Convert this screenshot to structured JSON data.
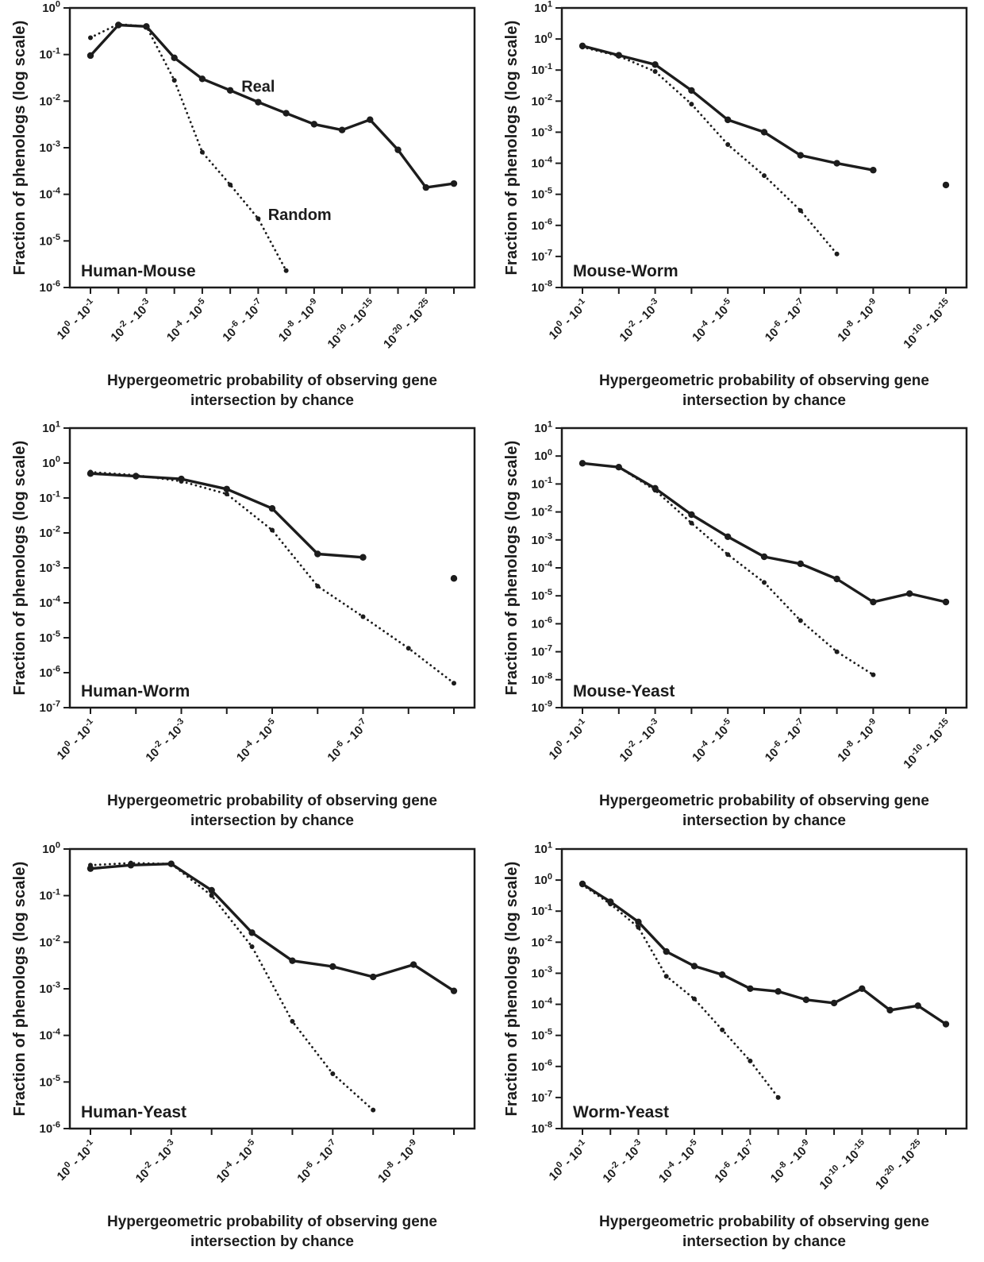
{
  "figure": {
    "background": "#ffffff",
    "ink": "#1c1c1c",
    "series_legend": [
      "Real",
      "Random"
    ]
  },
  "chart_data": [
    {
      "type": "line",
      "title": "Human-Mouse",
      "ylabel": "Fraction of phenologs (log scale)",
      "xlabel": "Hypergeometric probability of observing gene intersection by chance",
      "xlabel_lines": [
        "Hypergeometric probability of observing gene",
        "intersection by chance"
      ],
      "y_axis": {
        "top_exp": 0,
        "bottom_exp": -6,
        "scale": "log"
      },
      "x_tick_labels": [
        "10^0 - 10^-1",
        "",
        "10^-2 - 10^-3",
        "",
        "10^-4 - 10^-5",
        "",
        "10^-6 - 10^-7",
        "",
        "10^-8 - 10^-9",
        "",
        "10^-10 - 10^-15",
        "",
        "10^-20 - 10^-25",
        ""
      ],
      "series": [
        {
          "name": "Real",
          "style": "solid",
          "values": [
            0.095,
            0.43,
            0.4,
            0.085,
            0.03,
            0.017,
            0.0095,
            0.0055,
            0.0032,
            0.0024,
            0.004,
            0.0009,
            0.00014,
            0.00017
          ]
        },
        {
          "name": "Random",
          "style": "dotted",
          "values": [
            0.23,
            0.45,
            0.4,
            0.028,
            0.0008,
            0.00016,
            3e-05,
            2.3e-06,
            null,
            null,
            null,
            null,
            null,
            null
          ]
        }
      ],
      "annotations": [
        {
          "text": "Real",
          "x": 5.4,
          "y": 0.016
        },
        {
          "text": "Random",
          "x": 6.35,
          "y": 2.8e-05
        }
      ]
    },
    {
      "type": "line",
      "title": "Mouse-Worm",
      "ylabel": "Fraction of phenologs (log scale)",
      "xlabel": "Hypergeometric probability of observing gene intersection by chance",
      "xlabel_lines": [
        "Hypergeometric probability of observing gene",
        "intersection by chance"
      ],
      "y_axis": {
        "top_exp": 1,
        "bottom_exp": -8,
        "scale": "log"
      },
      "x_tick_labels": [
        "10^0 - 10^-1",
        "",
        "10^-2 - 10^-3",
        "",
        "10^-4 - 10^-5",
        "",
        "10^-6 - 10^-7",
        "",
        "10^-8 - 10^-9",
        "",
        "10^-10 - 10^-15"
      ],
      "series": [
        {
          "name": "Real",
          "style": "solid",
          "values": [
            0.6,
            0.3,
            0.15,
            0.022,
            0.0025,
            0.001,
            0.00018,
            0.0001,
            6e-05,
            null,
            2e-05
          ]
        },
        {
          "name": "Random",
          "style": "dotted",
          "values": [
            0.55,
            0.28,
            0.09,
            0.008,
            0.0004,
            4e-05,
            3e-06,
            1.2e-07,
            null,
            null,
            null
          ]
        }
      ],
      "annotations": []
    },
    {
      "type": "line",
      "title": "Human-Worm",
      "ylabel": "Fraction of phenologs (log scale)",
      "xlabel": "Hypergeometric probability of observing gene intersection by chance",
      "xlabel_lines": [
        "Hypergeometric probability of observing gene",
        "intersection by chance"
      ],
      "y_axis": {
        "top_exp": 1,
        "bottom_exp": -7,
        "scale": "log"
      },
      "x_tick_labels": [
        "10^0 - 10^-1",
        "",
        "10^-2 - 10^-3",
        "",
        "10^-4 - 10^-5",
        "",
        "10^-6 - 10^-7",
        "",
        ""
      ],
      "series": [
        {
          "name": "Real",
          "style": "solid",
          "values": [
            0.5,
            0.42,
            0.35,
            0.18,
            0.05,
            0.0025,
            0.002,
            null,
            0.0005
          ]
        },
        {
          "name": "Random",
          "style": "dotted",
          "values": [
            0.55,
            0.45,
            0.3,
            0.13,
            0.012,
            0.0003,
            4e-05,
            5e-06,
            5e-07
          ]
        }
      ],
      "annotations": []
    },
    {
      "type": "line",
      "title": "Mouse-Yeast",
      "ylabel": "Fraction of phenologs (log scale)",
      "xlabel": "Hypergeometric probability of observing gene intersection by chance",
      "xlabel_lines": [
        "Hypergeometric probability of observing gene",
        "intersection by chance"
      ],
      "y_axis": {
        "top_exp": 1,
        "bottom_exp": -9,
        "scale": "log"
      },
      "x_tick_labels": [
        "10^0 - 10^-1",
        "",
        "10^-2 - 10^-3",
        "",
        "10^-4 - 10^-5",
        "",
        "10^-6 - 10^-7",
        "",
        "10^-8 - 10^-9",
        "",
        "10^-10 - 10^-15"
      ],
      "series": [
        {
          "name": "Real",
          "style": "solid",
          "values": [
            0.55,
            0.4,
            0.07,
            0.008,
            0.0013,
            0.00025,
            0.00014,
            4e-05,
            6e-06,
            1.2e-05,
            6e-06
          ]
        },
        {
          "name": "Random",
          "style": "dotted",
          "values": [
            0.55,
            0.4,
            0.06,
            0.004,
            0.0003,
            3e-05,
            1.3e-06,
            1e-07,
            1.5e-08,
            null,
            null
          ]
        }
      ],
      "annotations": []
    },
    {
      "type": "line",
      "title": "Human-Yeast",
      "ylabel": "Fraction of phenologs (log scale)",
      "xlabel": "Hypergeometric probability of observing gene intersection by chance",
      "xlabel_lines": [
        "Hypergeometric probability of observing gene",
        "intersection by chance"
      ],
      "y_axis": {
        "top_exp": 0,
        "bottom_exp": -6,
        "scale": "log"
      },
      "x_tick_labels": [
        "10^0 - 10^-1",
        "",
        "10^-2 - 10^-3",
        "",
        "10^-4 - 10^-5",
        "",
        "10^-6 - 10^-7",
        "",
        "10^-8 - 10^-9",
        ""
      ],
      "series": [
        {
          "name": "Real",
          "style": "solid",
          "values": [
            0.38,
            0.45,
            0.48,
            0.13,
            0.016,
            0.004,
            0.003,
            0.0018,
            0.0033,
            0.0009
          ]
        },
        {
          "name": "Random",
          "style": "dotted",
          "values": [
            0.45,
            0.5,
            0.48,
            0.1,
            0.008,
            0.0002,
            1.5e-05,
            2.5e-06,
            null,
            null
          ]
        }
      ],
      "annotations": []
    },
    {
      "type": "line",
      "title": "Worm-Yeast",
      "ylabel": "Fraction of phenologs (log scale)",
      "xlabel": "Hypergeometric probability of observing gene intersection by chance",
      "xlabel_lines": [
        "Hypergeometric probability of observing gene",
        "intersection by chance"
      ],
      "y_axis": {
        "top_exp": 1,
        "bottom_exp": -8,
        "scale": "log"
      },
      "x_tick_labels": [
        "10^0 - 10^-1",
        "",
        "10^-2 - 10^-3",
        "",
        "10^-4 - 10^-5",
        "",
        "10^-6 - 10^-7",
        "",
        "10^-8 - 10^-9",
        "",
        "10^-10 - 10^-15",
        "",
        "10^-20 - 10^-25",
        ""
      ],
      "series": [
        {
          "name": "Real",
          "style": "solid",
          "values": [
            0.75,
            0.2,
            0.045,
            0.005,
            0.0017,
            0.0009,
            0.00032,
            0.00026,
            0.00014,
            0.00011,
            0.00032,
            6.5e-05,
            9e-05,
            2.3e-05
          ]
        },
        {
          "name": "Random",
          "style": "dotted",
          "values": [
            0.7,
            0.17,
            0.03,
            0.0008,
            0.00015,
            1.5e-05,
            1.5e-06,
            1e-07,
            null,
            null,
            null,
            null,
            null,
            null
          ]
        }
      ],
      "annotations": []
    }
  ]
}
